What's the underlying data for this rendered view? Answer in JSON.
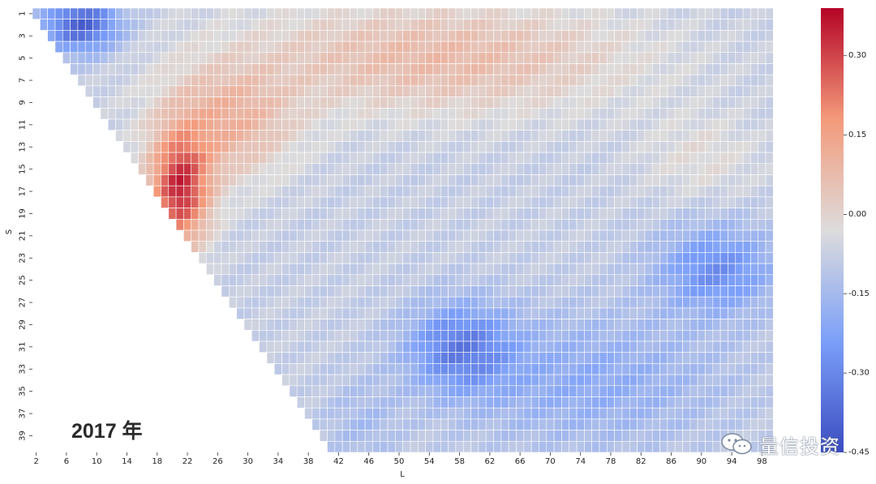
{
  "annotation": "2017 年",
  "watermark": {
    "text": "量信投资",
    "icon": "wechat-icon"
  },
  "chart_data": {
    "type": "heatmap",
    "xlabel": "L",
    "ylabel": "S",
    "x_range": [
      2,
      99
    ],
    "y_range": [
      1,
      40
    ],
    "x_tick_labels": [
      "2",
      "6",
      "10",
      "14",
      "18",
      "22",
      "26",
      "30",
      "34",
      "38",
      "42",
      "46",
      "50",
      "54",
      "58",
      "62",
      "66",
      "70",
      "74",
      "78",
      "82",
      "86",
      "90",
      "94",
      "98"
    ],
    "y_tick_labels": [
      "1",
      "3",
      "5",
      "7",
      "9",
      "11",
      "13",
      "15",
      "17",
      "19",
      "21",
      "23",
      "25",
      "27",
      "29",
      "31",
      "33",
      "35",
      "37",
      "39"
    ],
    "mask": "cells with L <= S are empty",
    "colormap": "coolwarm",
    "colorbar": {
      "min": -0.45,
      "max": 0.39,
      "tick_labels": [
        "0.30",
        "0.15",
        "0.00",
        "-0.15",
        "-0.30",
        "-0.45"
      ]
    },
    "approx_regions": [
      {
        "S": [
          13,
          21
        ],
        "L": [
          16,
          26
        ],
        "value": 0.33
      },
      {
        "S": [
          7,
          16
        ],
        "L": [
          16,
          34
        ],
        "value": 0.2
      },
      {
        "S": [
          2,
          10
        ],
        "L": [
          40,
          80
        ],
        "value": 0.1
      },
      {
        "S": [
          1,
          5
        ],
        "L": [
          2,
          14
        ],
        "value": -0.35
      },
      {
        "S": [
          29,
          34
        ],
        "L": [
          54,
          62
        ],
        "value": -0.33
      },
      {
        "S": [
          22,
          28
        ],
        "L": [
          82,
          99
        ],
        "value": -0.28
      },
      {
        "S": [
          30,
          40
        ],
        "L": [
          64,
          99
        ],
        "value": -0.25
      }
    ]
  }
}
